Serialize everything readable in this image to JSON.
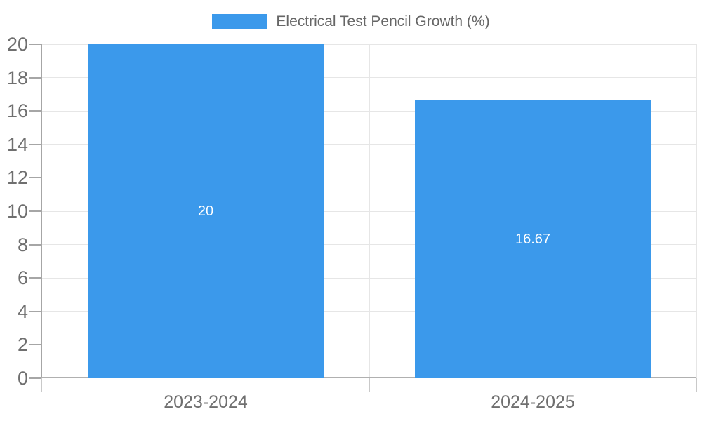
{
  "chart_data": {
    "type": "bar",
    "title": "Electrical Test Pencil Growth (%)",
    "legend_entries": [
      "Electrical Test Pencil Growth (%)"
    ],
    "legend_position": "top-center",
    "categories": [
      "2023-2024",
      "2024-2025"
    ],
    "values": [
      20,
      16.67
    ],
    "bar_labels": [
      "20",
      "16.67"
    ],
    "xlabel": "",
    "ylabel": "",
    "ylim": [
      0,
      20
    ],
    "yticks": [
      0,
      2,
      4,
      6,
      8,
      10,
      12,
      14,
      16,
      18,
      20
    ],
    "grid": "horizontal gridlines at each y tick; vertical category boundary lines",
    "colors": {
      "bar": "#3b99eb",
      "bar_label": "#ffffff",
      "legend_text": "#666666",
      "axis_text": "#6f6f6f",
      "gridline": "#e6e6e6",
      "axis_line": "#a6a6a6",
      "bottom_axis_line": "#b0b0b0",
      "tick": "#c9c9c9",
      "background": "#ffffff"
    }
  }
}
